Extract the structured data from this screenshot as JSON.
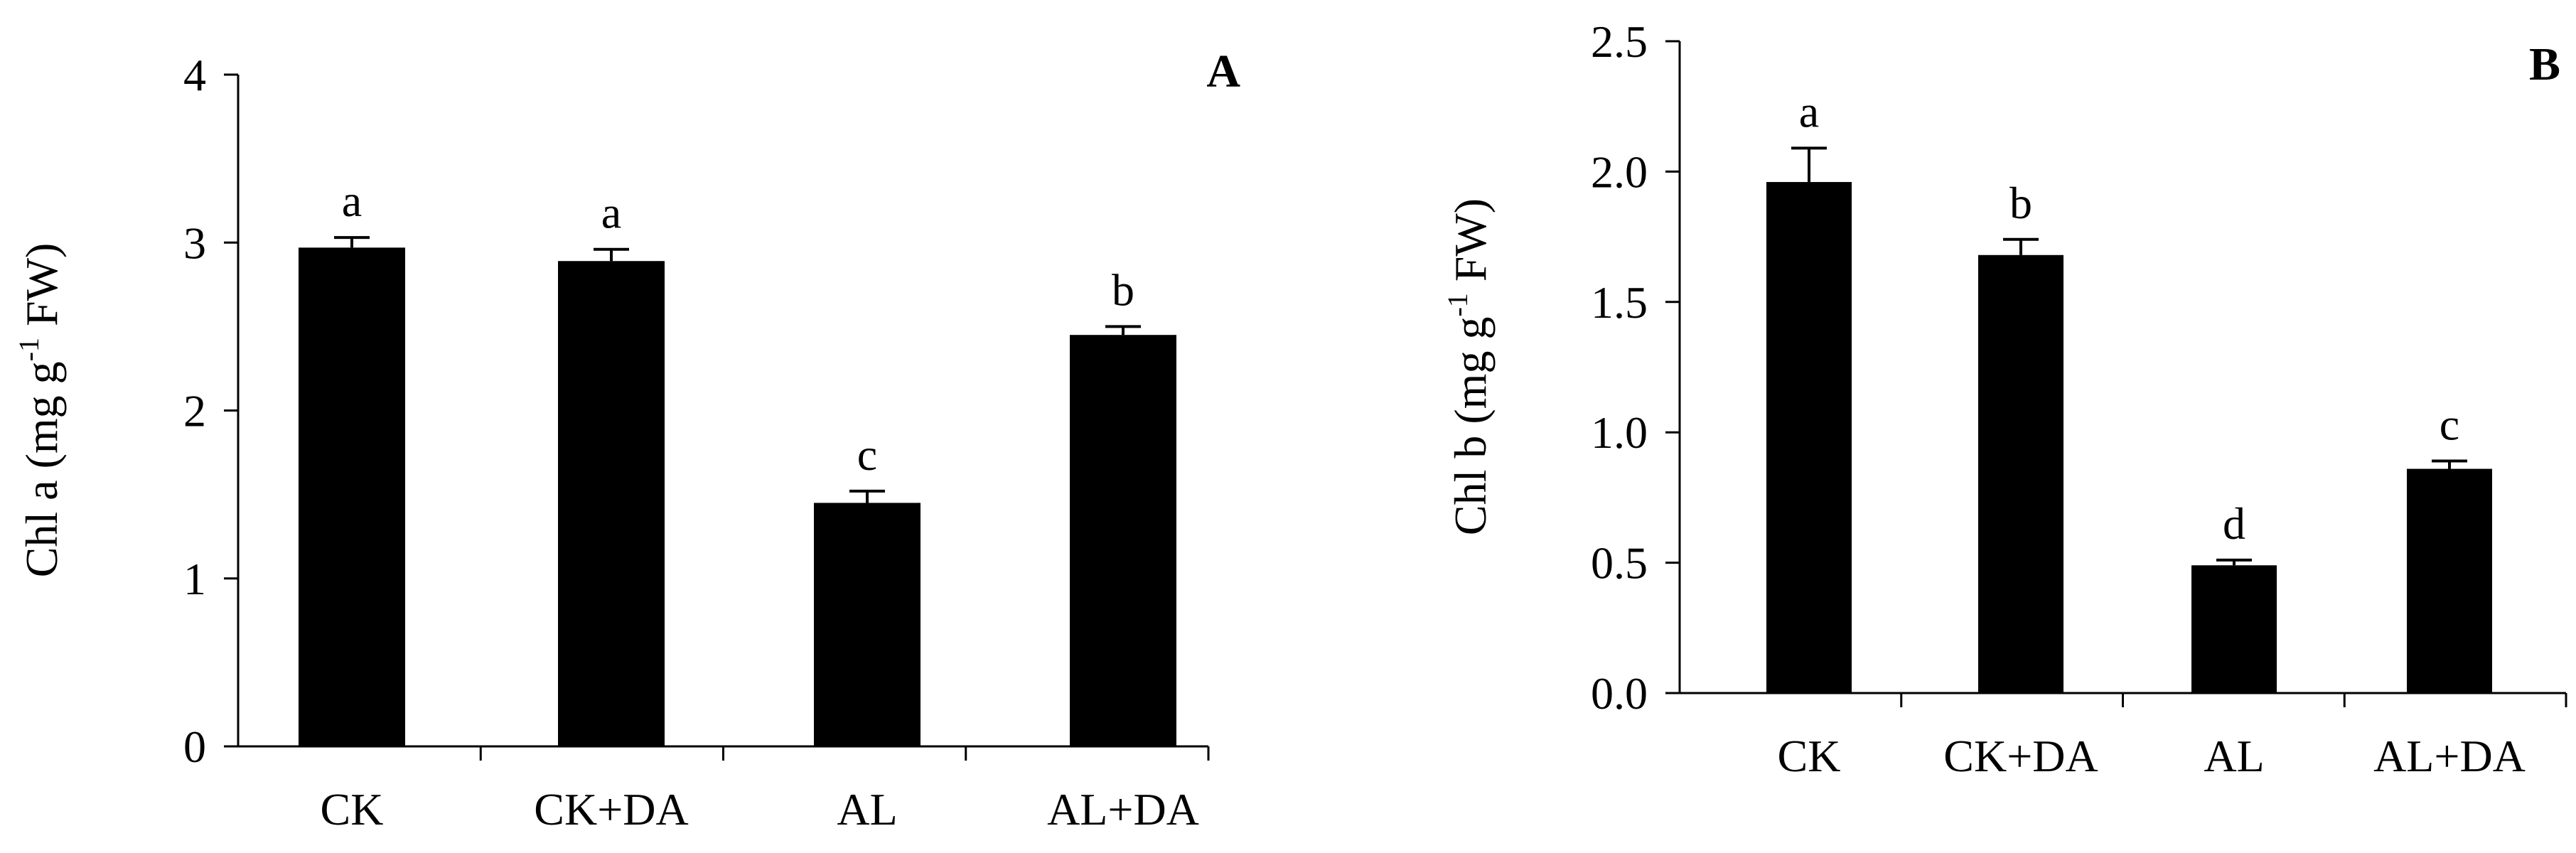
{
  "chart_data": [
    {
      "type": "bar",
      "panel_label": "A",
      "ylabel": {
        "prefix": "Chl  a (mg g",
        "sup": "-1",
        "suffix": " FW)"
      },
      "categories": [
        "CK",
        "CK+DA",
        "AL",
        "AL+DA"
      ],
      "values": [
        2.97,
        2.89,
        1.45,
        2.45
      ],
      "errors": [
        0.06,
        0.07,
        0.07,
        0.05
      ],
      "significance": [
        "a",
        "a",
        "c",
        "b"
      ],
      "ylim": [
        0,
        4
      ],
      "yticks": [
        "0",
        "1",
        "2",
        "3",
        "4"
      ],
      "ytick_values": [
        0,
        1,
        2,
        3,
        4
      ],
      "grid": false,
      "bar_color": "#000000"
    },
    {
      "type": "bar",
      "panel_label": "B",
      "ylabel": {
        "prefix": "Chl  b (mg g",
        "sup": "-1",
        "suffix": " FW)"
      },
      "categories": [
        "CK",
        "CK+DA",
        "AL",
        "AL+DA"
      ],
      "values": [
        1.96,
        1.68,
        0.49,
        0.86
      ],
      "errors": [
        0.13,
        0.06,
        0.02,
        0.03
      ],
      "significance": [
        "a",
        "b",
        "d",
        "c"
      ],
      "ylim": [
        0,
        2.5
      ],
      "yticks": [
        "0.0",
        "0.5",
        "1.0",
        "1.5",
        "2.0",
        "2.5"
      ],
      "ytick_values": [
        0,
        0.5,
        1.0,
        1.5,
        2.0,
        2.5
      ],
      "grid": false,
      "bar_color": "#000000"
    }
  ]
}
